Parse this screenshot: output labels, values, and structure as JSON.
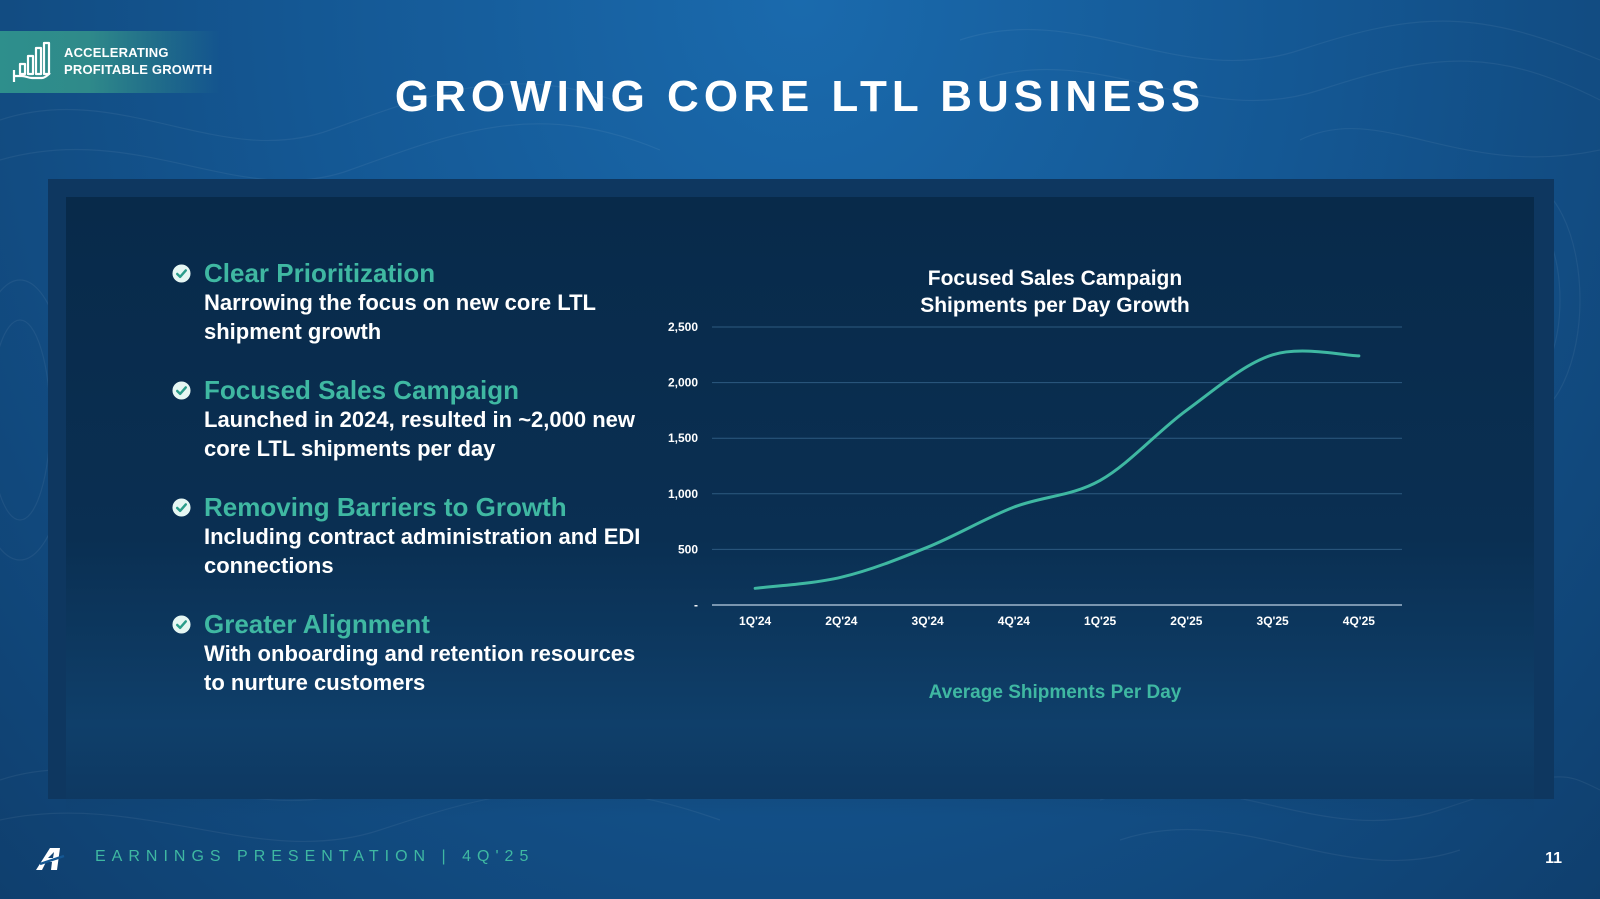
{
  "header": {
    "tag_line1": "ACCELERATING",
    "tag_line2": "PROFITABLE GROWTH",
    "tag_icon": "growth-chart-hand-icon",
    "title": "GROWING CORE LTL BUSINESS"
  },
  "bullets": [
    {
      "heading": "Clear Prioritization",
      "body": "Narrowing the focus on new core LTL shipment growth"
    },
    {
      "heading": "Focused Sales Campaign",
      "body": "Launched in 2024, resulted in ~2,000 new core LTL shipments  per day"
    },
    {
      "heading": "Removing Barriers to Growth",
      "body": "Including contract administration and EDI connections"
    },
    {
      "heading": "Greater Alignment",
      "body": "With onboarding and retention resources to nurture customers"
    }
  ],
  "chart": {
    "caption": "Average Shipments Per Day"
  },
  "chart_data": {
    "type": "line",
    "title": "Focused Sales Campaign Shipments per Day Growth",
    "title_line1": "Focused Sales Campaign",
    "title_line2": "Shipments per Day Growth",
    "categories": [
      "1Q'24",
      "2Q'24",
      "3Q'24",
      "4Q'24",
      "1Q'25",
      "2Q'25",
      "3Q'25",
      "4Q'25"
    ],
    "series": [
      {
        "name": "Average Shipments Per Day",
        "values": [
          150,
          250,
          520,
          880,
          1120,
          1750,
          2250,
          2240
        ]
      }
    ],
    "y_ticks": [
      0,
      500,
      1000,
      1500,
      2000,
      2500
    ],
    "y_tick_labels": [
      "-",
      "500",
      "1,000",
      "1,500",
      "2,000",
      "2,500"
    ],
    "ylim": [
      0,
      2500
    ],
    "xlabel": "",
    "ylabel": "",
    "grid": true,
    "legend": "none"
  },
  "footer": {
    "text": "EARNINGS PRESENTATION   |   4Q'25",
    "page_number": "11"
  },
  "colors": {
    "accent": "#3fb8a2",
    "background": "#145793",
    "panel": "#082a4a",
    "line": "#3fb8a2",
    "grid": "#2d5a80"
  }
}
